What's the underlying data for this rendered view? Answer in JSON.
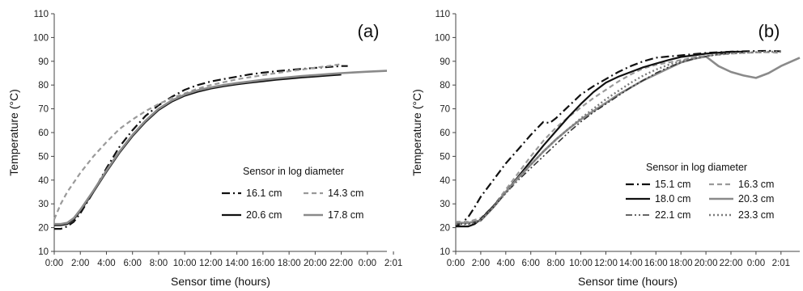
{
  "chart_data": [
    {
      "type": "line",
      "panel_label": "(a)",
      "xlabel": "Sensor time (hours)",
      "ylabel": "Temperature (°C)",
      "xlim": [
        0,
        25.5
      ],
      "ylim": [
        10,
        110
      ],
      "yticks": [
        10,
        20,
        30,
        40,
        50,
        60,
        70,
        80,
        90,
        100,
        110
      ],
      "xticks": [
        {
          "v": 0,
          "label": "0:00"
        },
        {
          "v": 2,
          "label": "2:00"
        },
        {
          "v": 4,
          "label": "4:00"
        },
        {
          "v": 6,
          "label": "6:00"
        },
        {
          "v": 8,
          "label": "8:00"
        },
        {
          "v": 10,
          "label": "10:00"
        },
        {
          "v": 12,
          "label": "12:00"
        },
        {
          "v": 14,
          "label": "14:00"
        },
        {
          "v": 16,
          "label": "16:00"
        },
        {
          "v": 18,
          "label": "18:00"
        },
        {
          "v": 20,
          "label": "20:00"
        },
        {
          "v": 22,
          "label": "22:00"
        },
        {
          "v": 24,
          "label": "0:00"
        },
        {
          "v": 26,
          "label": "2:01"
        }
      ],
      "grid": false,
      "legend": {
        "title": "Sensor in log diameter",
        "position": "lower-right",
        "columns": 2
      },
      "series": [
        {
          "name": "16.1 cm",
          "color": "#111111",
          "dash": "10 4 2 4",
          "width": 2.2,
          "x": [
            0,
            0.5,
            1,
            1.5,
            2,
            3,
            4,
            5,
            6,
            7,
            8,
            9,
            10,
            11,
            12,
            13,
            14,
            15,
            16,
            17,
            18,
            19,
            20,
            21,
            22,
            22.5
          ],
          "y": [
            19.5,
            19.5,
            20.5,
            22.5,
            26,
            35,
            45,
            54,
            61,
            67,
            71.5,
            75,
            78,
            80,
            81.5,
            82.5,
            83.5,
            84.5,
            85.2,
            85.8,
            86.3,
            86.8,
            87.2,
            87.6,
            88,
            88
          ]
        },
        {
          "name": "14.3 cm",
          "color": "#9a9a9a",
          "dash": "6 4",
          "width": 2.2,
          "x": [
            0,
            0.5,
            1,
            2,
            3,
            4,
            5,
            6,
            7,
            8,
            9,
            10,
            11,
            12,
            13,
            14,
            15,
            16,
            17,
            18,
            19,
            20,
            21,
            22
          ],
          "y": [
            23.5,
            30,
            35,
            43,
            50,
            56,
            61.5,
            65.5,
            69,
            72,
            74.5,
            76.5,
            78.5,
            80,
            81.2,
            82.4,
            83.3,
            84.2,
            85,
            85.8,
            86.5,
            87.3,
            88,
            88.8
          ]
        },
        {
          "name": "20.6 cm",
          "color": "#111111",
          "dash": "",
          "width": 2.2,
          "x": [
            0,
            0.5,
            1,
            1.5,
            2,
            3,
            4,
            5,
            6,
            7,
            8,
            9,
            10,
            11,
            12,
            13,
            14,
            15,
            16,
            17,
            18,
            19,
            20,
            21,
            22
          ],
          "y": [
            21,
            21,
            21.5,
            23.5,
            27,
            35,
            43.5,
            51.5,
            58.5,
            64.5,
            69.5,
            73,
            75.5,
            77.2,
            78.5,
            79.5,
            80.3,
            81,
            81.6,
            82.2,
            82.7,
            83.2,
            83.6,
            84,
            84.4
          ]
        },
        {
          "name": "17.8 cm",
          "color": "#8a8a8a",
          "dash": "",
          "width": 2.6,
          "x": [
            0,
            0.5,
            1,
            1.5,
            2,
            3,
            4,
            5,
            6,
            7,
            8,
            9,
            10,
            11,
            12,
            13,
            14,
            15,
            16,
            17,
            18,
            19,
            20,
            21,
            22,
            23,
            24,
            25,
            25.5
          ],
          "y": [
            21.5,
            21.5,
            22,
            24,
            27.5,
            35.5,
            44,
            52,
            59,
            65,
            70,
            73.5,
            76,
            77.8,
            79,
            80,
            80.8,
            81.5,
            82.2,
            82.8,
            83.3,
            83.8,
            84.2,
            84.6,
            85,
            85.3,
            85.6,
            85.9,
            86
          ]
        }
      ]
    },
    {
      "type": "line",
      "panel_label": "(b)",
      "xlabel": "Sensor time (hours)",
      "ylabel": "Temperature (°C)",
      "xlim": [
        0,
        27.5
      ],
      "ylim": [
        10,
        110
      ],
      "yticks": [
        10,
        20,
        30,
        40,
        50,
        60,
        70,
        80,
        90,
        100,
        110
      ],
      "xticks": [
        {
          "v": 0,
          "label": "0:00"
        },
        {
          "v": 2,
          "label": "2:00"
        },
        {
          "v": 4,
          "label": "4:00"
        },
        {
          "v": 6,
          "label": "6:00"
        },
        {
          "v": 8,
          "label": "8:00"
        },
        {
          "v": 10,
          "label": "10:00"
        },
        {
          "v": 12,
          "label": "12:00"
        },
        {
          "v": 14,
          "label": "14:00"
        },
        {
          "v": 16,
          "label": "16:00"
        },
        {
          "v": 18,
          "label": "18:00"
        },
        {
          "v": 20,
          "label": "20:00"
        },
        {
          "v": 22,
          "label": "22:00"
        },
        {
          "v": 24,
          "label": "0:00"
        },
        {
          "v": 26,
          "label": "2:01"
        }
      ],
      "grid": false,
      "legend": {
        "title": "Sensor in log diameter",
        "position": "lower-right",
        "columns": 2
      },
      "series": [
        {
          "name": "15.1 cm",
          "color": "#111111",
          "dash": "10 4 2 4",
          "width": 2.2,
          "x": [
            0,
            0.5,
            1,
            1.5,
            2,
            3,
            4,
            5,
            6,
            7,
            7.5,
            8,
            9,
            10,
            11,
            12,
            13,
            14,
            15,
            16,
            17,
            18,
            19,
            20,
            21,
            22,
            23,
            24,
            25,
            26
          ],
          "y": [
            20.5,
            22,
            24.5,
            28.5,
            33,
            40,
            47,
            53,
            59,
            64.5,
            64,
            66,
            71,
            76,
            79.5,
            82.5,
            85.5,
            88,
            90,
            91.5,
            92,
            92.5,
            93,
            93.5,
            93.8,
            94,
            94.2,
            94.3,
            94.4,
            94.2
          ]
        },
        {
          "name": "16.3 cm",
          "color": "#9a9a9a",
          "dash": "6 4",
          "width": 2.2,
          "x": [
            0,
            1,
            2,
            3,
            4,
            5,
            6,
            7,
            8,
            9,
            10,
            11,
            12,
            13,
            14,
            15,
            16,
            17,
            18,
            19,
            20,
            21,
            22,
            23,
            24,
            25,
            26
          ],
          "y": [
            22.5,
            22.5,
            24,
            29,
            36,
            43,
            50,
            56.5,
            62,
            66.5,
            70.5,
            74.5,
            78,
            81.5,
            84.5,
            87,
            88.5,
            89.5,
            90.5,
            91.5,
            92.2,
            92.8,
            93.2,
            93.5,
            93.7,
            93.8,
            93.5
          ]
        },
        {
          "name": "18.0 cm",
          "color": "#111111",
          "dash": "",
          "width": 2.2,
          "x": [
            0,
            1,
            1.5,
            2,
            3,
            4,
            5,
            6,
            7,
            8,
            9,
            10,
            11,
            12,
            13,
            14,
            15,
            16,
            17,
            18,
            19,
            20,
            21,
            22,
            23
          ],
          "y": [
            20.5,
            20.5,
            21.5,
            23.5,
            29,
            35,
            41.5,
            48,
            54.5,
            60.5,
            66.5,
            72,
            77,
            81,
            83.5,
            85.5,
            87.5,
            89,
            90.5,
            91.8,
            92.5,
            93.2,
            93.6,
            94,
            94
          ]
        },
        {
          "name": "20.3 cm",
          "color": "#8a8a8a",
          "dash": "",
          "width": 2.6,
          "x": [
            0,
            1,
            2,
            3,
            4,
            5,
            6,
            7,
            8,
            9,
            10,
            11,
            12,
            13,
            14,
            15,
            16,
            17,
            18,
            19,
            20,
            21,
            22,
            23,
            24,
            25,
            26,
            27.5
          ],
          "y": [
            22,
            22,
            23,
            28.5,
            35,
            41,
            46.5,
            52,
            57,
            61.5,
            65.5,
            69,
            72.5,
            76,
            79,
            82,
            84.5,
            87,
            89.5,
            91,
            92,
            88,
            85.5,
            84,
            83,
            85,
            88,
            91.5
          ]
        },
        {
          "name": "22.1 cm",
          "color": "#333333",
          "dash": "8 3 2 3 2 3",
          "width": 1.6,
          "x": [
            0,
            1,
            2,
            3,
            4,
            5,
            6,
            7,
            8,
            9,
            10,
            11,
            12,
            13,
            14,
            15,
            16,
            17,
            18,
            19,
            20,
            21,
            22
          ],
          "y": [
            21.5,
            21.5,
            23,
            28.5,
            34.5,
            40,
            45,
            50,
            55,
            60,
            64.5,
            68.5,
            72,
            75.5,
            79,
            82,
            85,
            87.5,
            89.5,
            91,
            92,
            93,
            93.5
          ]
        },
        {
          "name": "23.3 cm",
          "color": "#7a7a7a",
          "dash": "2 3",
          "width": 2.4,
          "x": [
            0,
            1,
            2,
            3,
            4,
            5,
            6,
            7,
            8,
            9,
            10,
            11,
            12,
            13,
            14,
            15,
            16,
            17,
            18,
            19,
            20,
            21,
            22,
            23,
            24,
            25,
            26
          ],
          "y": [
            21.5,
            21.5,
            23,
            28.5,
            34.5,
            40.5,
            46.5,
            52,
            57,
            61.5,
            66,
            70,
            74,
            77.5,
            81,
            84,
            86.5,
            88.5,
            90,
            91.5,
            92.2,
            92.8,
            93.3,
            93.6,
            93.8,
            94,
            94
          ]
        }
      ]
    }
  ]
}
